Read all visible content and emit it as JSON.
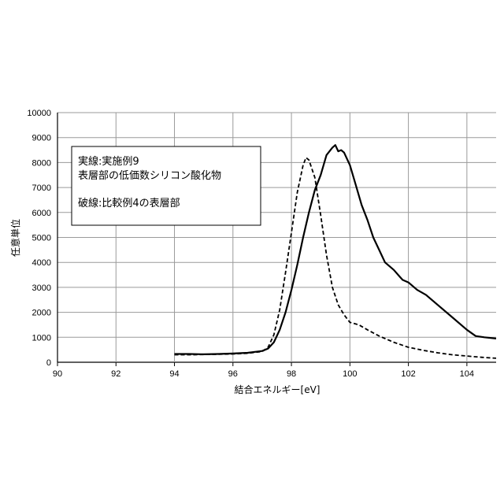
{
  "chart_data": {
    "type": "line",
    "xlabel": "結合エネルギー[eV]",
    "ylabel": "任意単位",
    "xlim": [
      90,
      105
    ],
    "ylim": [
      0,
      10000
    ],
    "xticks": [
      90,
      92,
      94,
      96,
      98,
      100,
      102,
      104
    ],
    "yticks": [
      0,
      1000,
      2000,
      3000,
      4000,
      5000,
      6000,
      7000,
      8000,
      9000,
      10000
    ],
    "grid": true,
    "legend_box": {
      "placement": "top-left",
      "lines": [
        "実線:実施例9",
        "表層部の低価数シリコン酸化物",
        "",
        "破線:比較例4の表層部"
      ]
    },
    "series": [
      {
        "style": "solid",
        "x": [
          94.0,
          94.5,
          95.0,
          95.5,
          96.0,
          96.5,
          97.0,
          97.2,
          97.4,
          97.6,
          97.8,
          98.0,
          98.2,
          98.4,
          98.6,
          98.8,
          99.0,
          99.2,
          99.4,
          99.5,
          99.6,
          99.7,
          99.8,
          100.0,
          100.2,
          100.4,
          100.6,
          100.8,
          101.0,
          101.2,
          101.5,
          101.8,
          102.0,
          102.3,
          102.6,
          103.0,
          103.5,
          104.0,
          104.3,
          104.6,
          105.0
        ],
        "y": [
          330,
          330,
          320,
          330,
          350,
          380,
          450,
          550,
          800,
          1300,
          2000,
          2900,
          3900,
          5000,
          6000,
          6900,
          7500,
          8300,
          8600,
          8700,
          8450,
          8500,
          8400,
          7900,
          7100,
          6300,
          5700,
          5000,
          4500,
          4000,
          3700,
          3300,
          3200,
          2900,
          2700,
          2300,
          1800,
          1300,
          1050,
          1000,
          950
        ]
      },
      {
        "style": "dashed",
        "x": [
          94.0,
          94.5,
          95.0,
          95.5,
          96.0,
          96.5,
          97.0,
          97.2,
          97.4,
          97.6,
          97.8,
          98.0,
          98.2,
          98.4,
          98.5,
          98.6,
          98.8,
          99.0,
          99.2,
          99.4,
          99.6,
          99.8,
          100.0,
          100.3,
          100.6,
          101.0,
          101.5,
          102.0,
          102.5,
          103.0,
          103.5,
          104.0,
          104.5,
          105.0
        ],
        "y": [
          300,
          300,
          310,
          320,
          330,
          360,
          430,
          600,
          1100,
          2100,
          3600,
          5200,
          6800,
          7900,
          8200,
          8100,
          7400,
          5900,
          4300,
          3000,
          2300,
          1900,
          1600,
          1500,
          1300,
          1050,
          800,
          600,
          480,
          380,
          300,
          250,
          200,
          160
        ]
      }
    ]
  }
}
